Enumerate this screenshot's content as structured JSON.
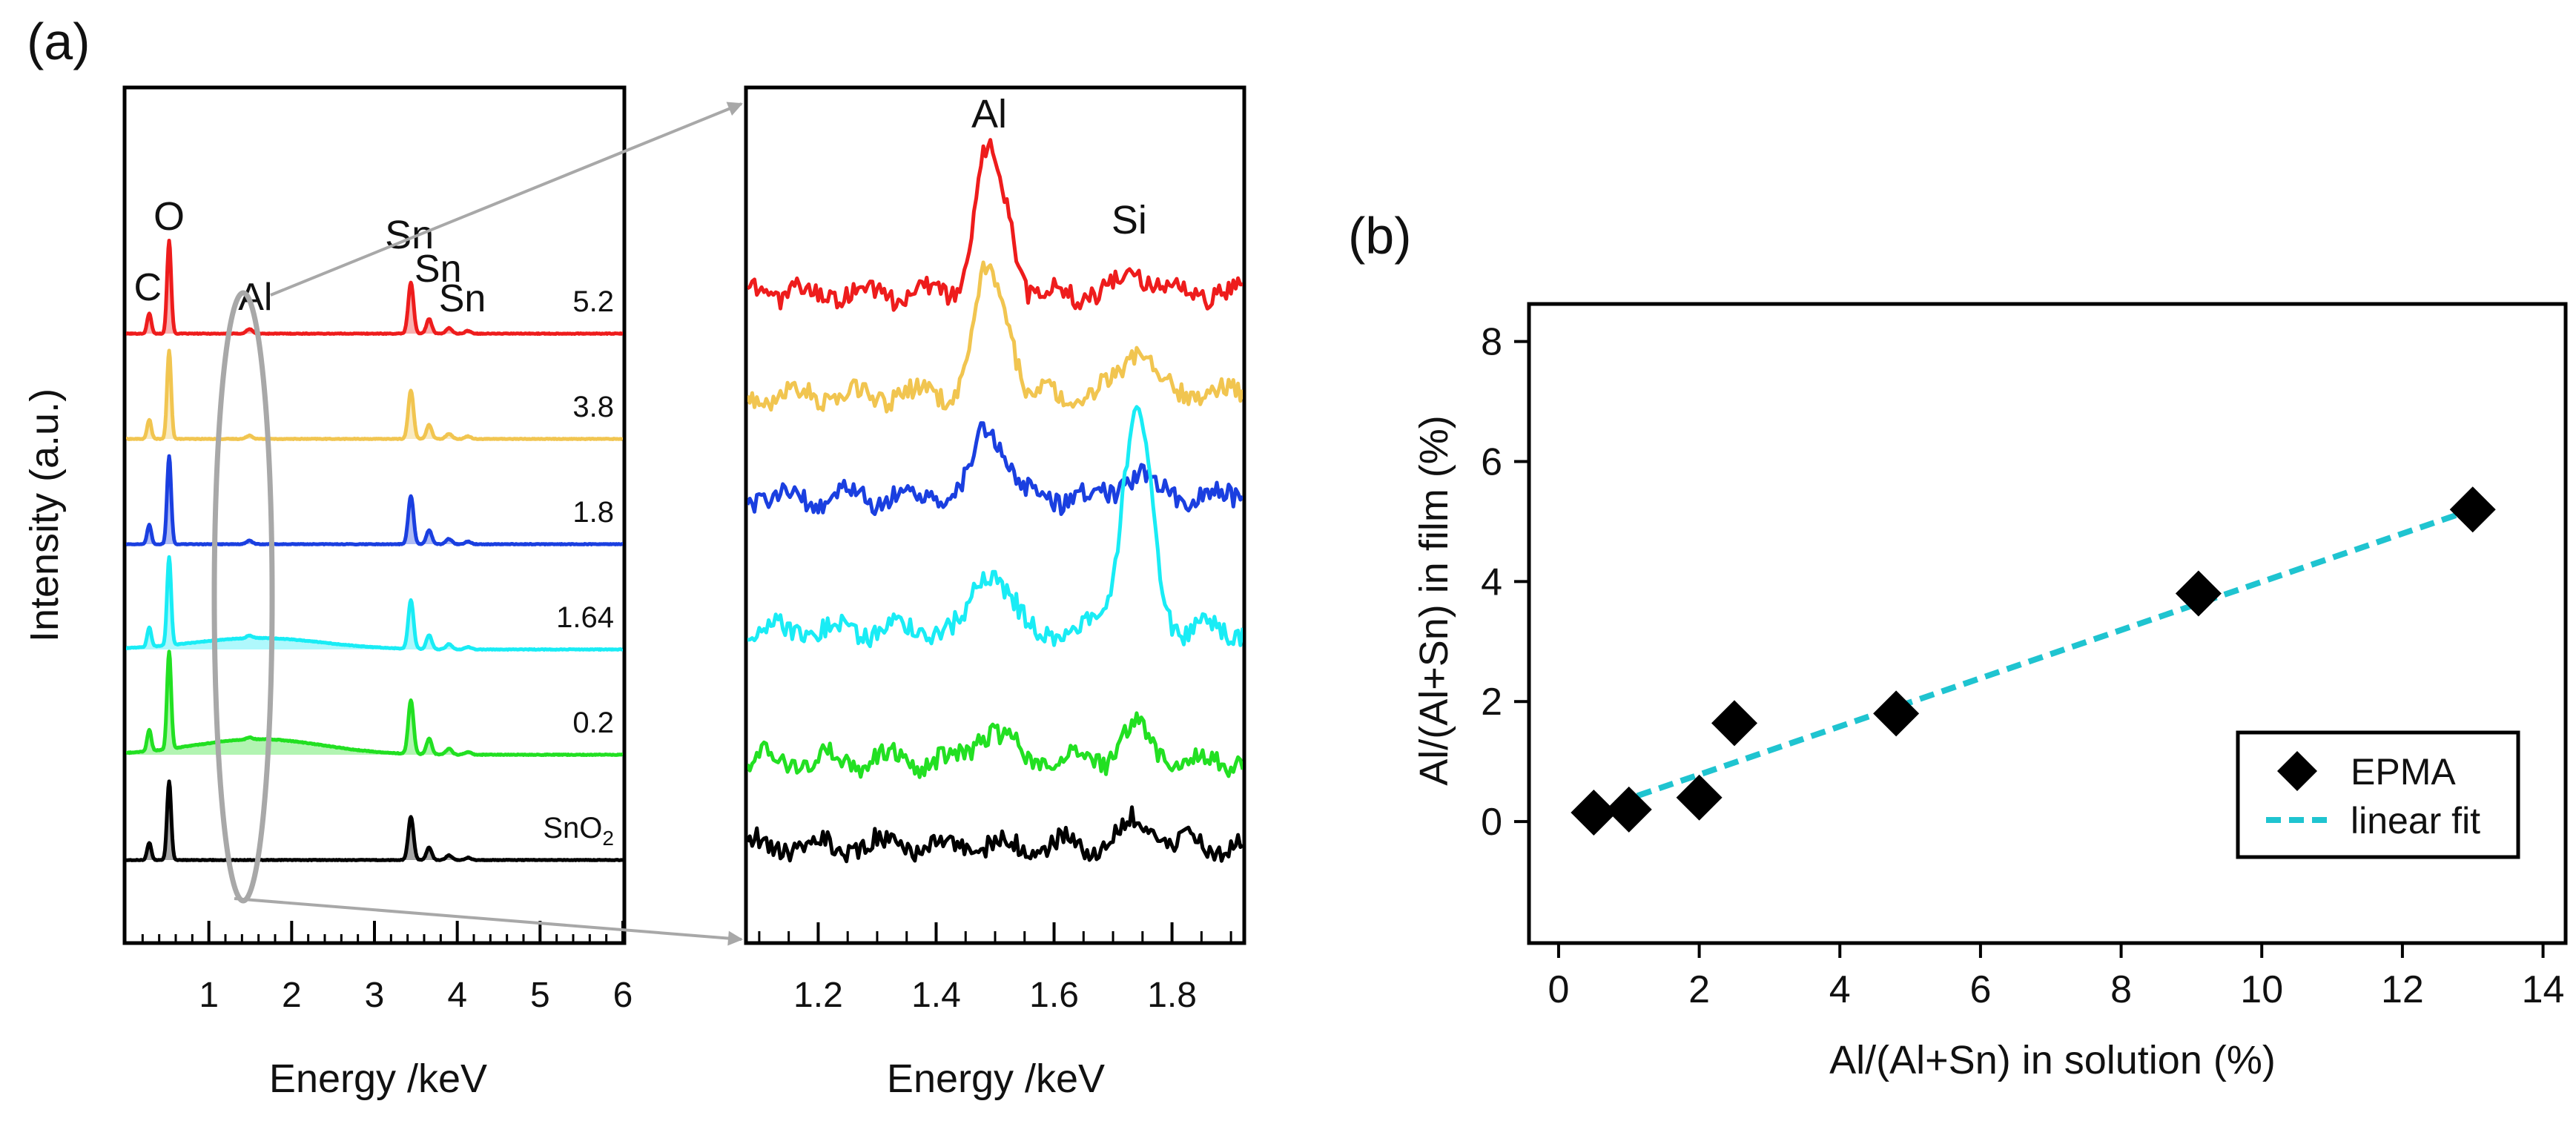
{
  "figure": {
    "panel_a_label": "(a)",
    "panel_b_label": "(b)"
  },
  "chart_data": [
    {
      "id": "a-full",
      "type": "line",
      "title": "",
      "xlabel": "Energy /keV",
      "ylabel": "Intensity (a.u.)",
      "xlim": [
        0,
        6
      ],
      "xticks": [
        1,
        2,
        3,
        4,
        5,
        6
      ],
      "grid": false,
      "series": [
        {
          "name": "5.2",
          "label": "5.2",
          "color": "#ee1c1c",
          "fill": "#ee1c1c",
          "baseline": 5,
          "scale": 1.0,
          "bg_bump": 0.0,
          "al_peak": 0.05
        },
        {
          "name": "3.8",
          "label": "3.8",
          "color": "#f1c550",
          "fill": "#f1c550",
          "baseline": 4,
          "scale": 0.95,
          "bg_bump": 0.0,
          "al_peak": 0.04
        },
        {
          "name": "1.8",
          "label": "1.8",
          "color": "#1a3fe0",
          "fill": "#1a3fe0",
          "baseline": 3,
          "scale": 0.95,
          "bg_bump": 0.0,
          "al_peak": 0.04
        },
        {
          "name": "1.64",
          "label": "1.64",
          "color": "#19ecf5",
          "fill": "#19ecf5",
          "baseline": 2,
          "scale": 0.95,
          "bg_bump": 0.13,
          "al_peak": 0.03
        },
        {
          "name": "0.2",
          "label": "0.2",
          "color": "#22e022",
          "fill": "#22e022",
          "baseline": 1,
          "scale": 1.05,
          "bg_bump": 0.16,
          "al_peak": 0.02
        },
        {
          "name": "SnO2",
          "label": "SnO",
          "label_sub": "2",
          "color": "#000000",
          "fill": "#000000",
          "baseline": 0,
          "scale": 0.85,
          "bg_bump": 0.0,
          "al_peak": 0.0
        }
      ],
      "peaks": [
        {
          "label": "C",
          "energy": 0.28
        },
        {
          "label": "O",
          "energy": 0.52
        },
        {
          "label": "Al",
          "energy": 1.49
        },
        {
          "label": "Sn",
          "energy": 3.44
        },
        {
          "label": "Sn",
          "energy": 3.66
        },
        {
          "label": "Sn",
          "energy": 3.9
        }
      ]
    },
    {
      "id": "a-zoom",
      "type": "line",
      "title": "",
      "xlabel": "Energy /keV",
      "ylabel": "",
      "xlim": [
        1.08,
        1.92
      ],
      "xticks": [
        1.2,
        1.4,
        1.6,
        1.8
      ],
      "xtick_labels": [
        "1.2",
        "1.4",
        "1.6",
        "1.8"
      ],
      "grid": false,
      "series": [
        {
          "name": "5.2",
          "color": "#ee1c1c",
          "al": 0.9,
          "si": 0.15
        },
        {
          "name": "3.8",
          "color": "#f1c550",
          "al": 0.8,
          "si": 0.3
        },
        {
          "name": "1.8",
          "color": "#1a3fe0",
          "al": 0.45,
          "si": 0.15
        },
        {
          "name": "1.64",
          "color": "#19ecf5",
          "al": 0.4,
          "si": 1.4
        },
        {
          "name": "0.2",
          "color": "#22e022",
          "al": 0.2,
          "si": 0.2
        },
        {
          "name": "SnO2",
          "color": "#000000",
          "al": 0.0,
          "si": 0.15
        }
      ],
      "annotations": [
        {
          "text": "Al",
          "x": 1.49
        },
        {
          "text": "Si",
          "x": 1.74
        }
      ]
    },
    {
      "id": "b",
      "type": "scatter",
      "title": "",
      "xlabel": "Al/(Al+Sn) in solution  (%)",
      "ylabel": "Al/(Al+Sn) in film  (%)",
      "xlim": [
        -0.4,
        14.3
      ],
      "ylim": [
        -2,
        8.6
      ],
      "xticks": [
        0,
        2,
        4,
        6,
        8,
        10,
        12,
        14
      ],
      "yticks": [
        0,
        2,
        4,
        6,
        8
      ],
      "grid": false,
      "legend_position": "lower-right",
      "series": [
        {
          "name": "EPMA",
          "marker": "diamond",
          "color": "#000000",
          "x": [
            0.5,
            1.0,
            2.0,
            2.5,
            4.8,
            9.1,
            13.0
          ],
          "y": [
            0.15,
            0.2,
            0.4,
            1.64,
            1.8,
            3.8,
            5.2
          ]
        },
        {
          "name": "linear fit",
          "style": "dashed",
          "color": "#1fc4d0",
          "x": [
            0.5,
            13.0
          ],
          "y": [
            0.18,
            5.2
          ]
        }
      ]
    }
  ]
}
